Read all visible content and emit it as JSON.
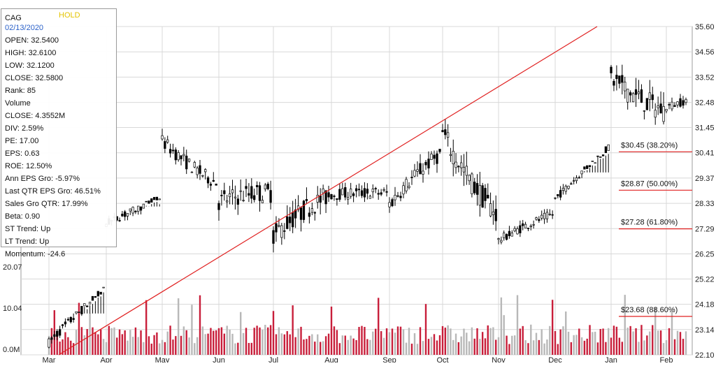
{
  "chart_data": {
    "type": "candlestick",
    "ticker": "CAG",
    "rating": "HOLD",
    "date": "02/13/2020",
    "info_lines": [
      "OPEN: 32.5400",
      "HIGH: 32.6100",
      "LOW: 32.1200",
      "CLOSE: 32.5800",
      "Rank: 85",
      "Volume",
      "CLOSE: 4.3552M",
      "DIV: 2.59%",
      "PE: 17.00",
      "EPS: 0.63",
      "ROE: 12.50%",
      "Ann EPS Gro: -5.97%",
      "Last QTR EPS Gro: 46.51%",
      "Sales Gro QTR: 17.99%",
      "Beta: 0.90",
      "ST Trend: Up",
      "LT Trend: Up",
      "Momentum: -24.6"
    ],
    "x_tick_labels": [
      "Mar",
      "Apr",
      "May",
      "Jun",
      "Jul",
      "Aug",
      "Sep",
      "Oct",
      "Nov",
      "Dec",
      "Jan",
      "Feb"
    ],
    "y_ticks": [
      22.1,
      23.14,
      24.18,
      25.22,
      26.25,
      27.29,
      28.33,
      29.37,
      30.41,
      31.45,
      32.48,
      33.52,
      34.56,
      35.6
    ],
    "ylim": [
      22.1,
      35.6
    ],
    "volume_ticks": [
      "0.0M",
      "10.04",
      "20.07"
    ],
    "volume_values": [
      0,
      10.04,
      20.07
    ],
    "fib_levels": [
      {
        "price": 30.45,
        "label": "$30.45 (38.20%)"
      },
      {
        "price": 28.87,
        "label": "$28.87 (50.00%)"
      },
      {
        "price": 27.28,
        "label": "$27.28 (61.80%)"
      },
      {
        "price": 23.68,
        "label": "$23.68 (88.60%)"
      }
    ],
    "trendline": {
      "start": {
        "month": "Mar",
        "price": 22.1
      },
      "end": {
        "month": "Dec",
        "price": 35.6
      }
    },
    "price_series_monthly": [
      {
        "month": "Mar",
        "open": 22.6,
        "close": 23.4,
        "high": 23.8,
        "low": 22.1
      },
      {
        "month": "Apr",
        "open": 27.5,
        "close": 27.4,
        "high": 28.2,
        "low": 26.8
      },
      {
        "month": "May",
        "open": 30.9,
        "close": 29.5,
        "high": 31.4,
        "low": 28.8
      },
      {
        "month": "Jun",
        "open": 28.4,
        "close": 29.7,
        "high": 30.0,
        "low": 26.3
      },
      {
        "month": "Jul",
        "open": 27.0,
        "close": 28.7,
        "high": 29.1,
        "low": 25.2
      },
      {
        "month": "Aug",
        "open": 28.7,
        "close": 29.0,
        "high": 29.5,
        "low": 27.2
      },
      {
        "month": "Sep",
        "open": 28.3,
        "close": 30.0,
        "high": 30.5,
        "low": 27.6
      },
      {
        "month": "Oct",
        "open": 31.2,
        "close": 28.4,
        "high": 31.8,
        "low": 27.2
      },
      {
        "month": "Nov",
        "open": 26.8,
        "close": 27.6,
        "high": 28.1,
        "low": 26.4
      },
      {
        "month": "Dec",
        "open": 28.5,
        "close": 29.2,
        "high": 29.6,
        "low": 28.2
      },
      {
        "month": "Jan",
        "open": 33.5,
        "close": 32.0,
        "high": 35.6,
        "low": 31.1
      },
      {
        "month": "Feb",
        "open": 32.3,
        "close": 32.6,
        "high": 33.2,
        "low": 31.6
      }
    ],
    "colors": {
      "trendline": "#e02020",
      "fib_line": "#e02020",
      "volume_up": "#b8b8b8",
      "volume_down": "#c81e3a",
      "grid": "#d8d8d8",
      "candle": "#000000",
      "rating": "#e4c400",
      "date": "#2b61c9"
    },
    "grid": true
  }
}
